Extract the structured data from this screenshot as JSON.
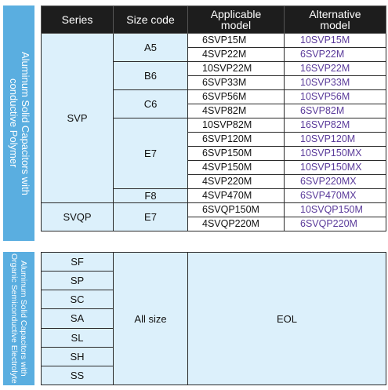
{
  "side_labels": {
    "top": [
      "Aluminum Solid Capacitors with",
      "conductive Polymer"
    ],
    "bottom": [
      "Aluminum Solid Capacitors with",
      "Organic Semiconductive Electrolyte"
    ]
  },
  "table": {
    "headers": {
      "series": "Series",
      "size_code": "Size code",
      "applicable_model": [
        "Applicable",
        "model"
      ],
      "alternative_model": [
        "Alternative",
        "model"
      ]
    },
    "svp": {
      "series": "SVP",
      "groups": [
        {
          "size": "A5",
          "rows": [
            [
              "6SVP15M",
              "10SVP15M"
            ],
            [
              "4SVP22M",
              "6SVP22M"
            ]
          ]
        },
        {
          "size": "B6",
          "rows": [
            [
              "10SVP22M",
              "16SVP22M"
            ],
            [
              "6SVP33M",
              "10SVP33M"
            ]
          ]
        },
        {
          "size": "C6",
          "rows": [
            [
              "6SVP56M",
              "10SVP56M"
            ],
            [
              "4SVP82M",
              "6SVP82M"
            ]
          ]
        },
        {
          "size": "E7",
          "rows": [
            [
              "10SVP82M",
              "16SVP82M"
            ],
            [
              "6SVP120M",
              "10SVP120M"
            ],
            [
              "6SVP150M",
              "10SVP150MX"
            ],
            [
              "4SVP150M",
              "10SVP150MX"
            ],
            [
              "4SVP220M",
              "6SVP220MX"
            ]
          ]
        },
        {
          "size": "F8",
          "rows": [
            [
              "4SVP470M",
              "6SVP470MX"
            ]
          ]
        }
      ]
    },
    "svqp": {
      "series": "SVQP",
      "size": "E7",
      "rows": [
        [
          "6SVQP150M",
          "10SVQP150M"
        ],
        [
          "4SVQP220M",
          "6SVQP220M"
        ]
      ]
    }
  },
  "eol_table": {
    "series": [
      "SF",
      "SP",
      "SC",
      "SA",
      "SL",
      "SH",
      "SS"
    ],
    "size": "All size",
    "status": "EOL"
  }
}
